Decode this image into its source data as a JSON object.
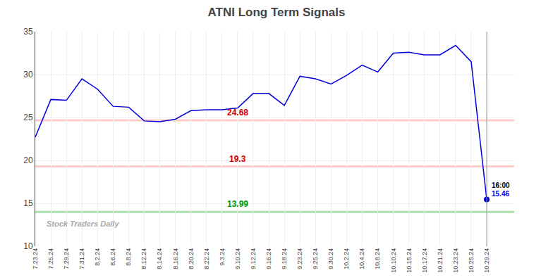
{
  "chart_data": {
    "type": "line",
    "title": "ATNI Long Term Signals",
    "categories": [
      "7.23.24",
      "7.25.24",
      "7.29.24",
      "7.31.24",
      "8.2.24",
      "8.6.24",
      "8.8.24",
      "8.12.24",
      "8.14.24",
      "8.16.24",
      "8.20.24",
      "8.22.24",
      "9.3.24",
      "9.10.24",
      "9.12.24",
      "9.16.24",
      "9.18.24",
      "9.23.24",
      "9.25.24",
      "9.30.24",
      "10.2.24",
      "10.4.24",
      "10.8.24",
      "10.10.24",
      "10.15.24",
      "10.17.24",
      "10.21.24",
      "10.23.24",
      "10.25.24",
      "10.29.24"
    ],
    "values": [
      22.7,
      27.1,
      27.0,
      29.5,
      28.3,
      26.3,
      26.2,
      24.6,
      24.5,
      24.8,
      25.8,
      25.9,
      25.9,
      26.1,
      27.8,
      27.8,
      26.4,
      29.8,
      29.5,
      28.9,
      29.9,
      31.1,
      30.3,
      32.5,
      32.6,
      32.3,
      32.3,
      33.4,
      31.5,
      15.46
    ],
    "color": "#0000dd",
    "ylim": [
      10,
      35
    ],
    "yticks": [
      10,
      15,
      20,
      25,
      30,
      35
    ],
    "grid": true,
    "reference_lines": [
      {
        "value": 24.68,
        "label_color": "#cc0000",
        "line_color": "#ffcccc"
      },
      {
        "value": 19.3,
        "label_color": "#cc0000",
        "line_color": "#ffcccc"
      },
      {
        "value": 13.99,
        "label_color": "#009900",
        "line_color": "#aaddaa"
      }
    ],
    "last_point": {
      "value": 15.46,
      "time_label": "16:00",
      "label_color": "#0000ee",
      "marker_color": "#0000dd",
      "line_color": "#999999"
    },
    "watermark": "Stock Traders Daily"
  }
}
